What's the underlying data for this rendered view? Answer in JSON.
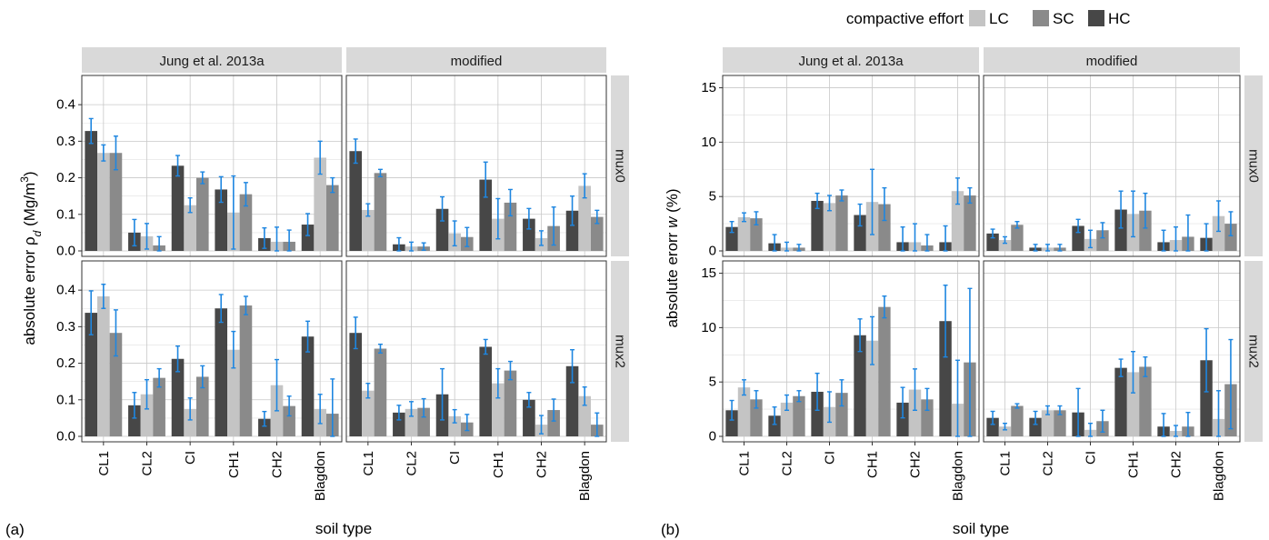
{
  "legend": {
    "title": "compactive effort",
    "items": [
      "LC",
      "SC",
      "HC"
    ]
  },
  "panel_labels": [
    "(a)",
    "(b)"
  ],
  "colors": {
    "LC": "#c4c4c4",
    "SC": "#8a8a8a",
    "HC": "#474747",
    "errorbar": "#1e86e0",
    "strip": "#d9d9d9",
    "grid": "#c8c8c8"
  },
  "chart_data": [
    {
      "type": "bar",
      "ylabel": "absolute error ρd (Mg/m3)",
      "xlabel": "soil type",
      "ylim": [
        0,
        0.47
      ],
      "yticks": [
        0.0,
        0.1,
        0.2,
        0.3,
        0.4
      ],
      "columns": [
        "Jung et al. 2013a",
        "modified"
      ],
      "rows": [
        "mux0",
        "mux2"
      ],
      "categories": [
        "CL1",
        "CL2",
        "CI",
        "CH1",
        "CH2",
        "Blagdon"
      ],
      "series_order": [
        "HC",
        "LC",
        "SC"
      ],
      "panels": [
        {
          "column": "Jung et al. 2013a",
          "row": "mux0",
          "HC": [
            0.328,
            0.05,
            0.233,
            0.168,
            0.035,
            0.072
          ],
          "LC": [
            0.268,
            0.04,
            0.125,
            0.105,
            0.025,
            0.255
          ],
          "SC": [
            0.268,
            0.015,
            0.2,
            0.155,
            0.025,
            0.18
          ],
          "err": {
            "HC": [
              0.034,
              0.036,
              0.028,
              0.035,
              0.028,
              0.03
            ],
            "LC": [
              0.022,
              0.035,
              0.02,
              0.1,
              0.04,
              0.045
            ],
            "SC": [
              0.046,
              0.024,
              0.016,
              0.032,
              0.032,
              0.02
            ]
          }
        },
        {
          "column": "modified",
          "row": "mux0",
          "HC": [
            0.273,
            0.018,
            0.115,
            0.195,
            0.088,
            0.11
          ],
          "LC": [
            0.112,
            0.012,
            0.048,
            0.088,
            0.035,
            0.178
          ],
          "SC": [
            0.213,
            0.012,
            0.038,
            0.132,
            0.068,
            0.093
          ],
          "err": {
            "HC": [
              0.033,
              0.018,
              0.033,
              0.048,
              0.028,
              0.04
            ],
            "LC": [
              0.017,
              0.012,
              0.034,
              0.055,
              0.02,
              0.033
            ],
            "SC": [
              0.01,
              0.01,
              0.026,
              0.036,
              0.052,
              0.018
            ]
          }
        },
        {
          "column": "Jung et al. 2013a",
          "row": "mux2",
          "HC": [
            0.338,
            0.085,
            0.212,
            0.35,
            0.048,
            0.273
          ],
          "LC": [
            0.383,
            0.115,
            0.075,
            0.237,
            0.14,
            0.075
          ],
          "SC": [
            0.283,
            0.16,
            0.163,
            0.358,
            0.083,
            0.062
          ],
          "err": {
            "HC": [
              0.06,
              0.035,
              0.035,
              0.038,
              0.02,
              0.042
            ],
            "LC": [
              0.033,
              0.04,
              0.03,
              0.05,
              0.07,
              0.04
            ],
            "SC": [
              0.063,
              0.025,
              0.03,
              0.025,
              0.027,
              0.095
            ]
          }
        },
        {
          "column": "modified",
          "row": "mux2",
          "HC": [
            0.283,
            0.065,
            0.115,
            0.245,
            0.1,
            0.192
          ],
          "LC": [
            0.125,
            0.075,
            0.055,
            0.145,
            0.032,
            0.11
          ],
          "SC": [
            0.24,
            0.078,
            0.038,
            0.18,
            0.072,
            0.032
          ],
          "err": {
            "HC": [
              0.043,
              0.02,
              0.07,
              0.02,
              0.02,
              0.045
            ],
            "LC": [
              0.02,
              0.02,
              0.018,
              0.04,
              0.025,
              0.025
            ],
            "SC": [
              0.012,
              0.025,
              0.022,
              0.025,
              0.03,
              0.032
            ]
          }
        }
      ]
    },
    {
      "type": "bar",
      "ylabel": "absolute erorr w (%)",
      "xlabel": "soil type",
      "ylim": [
        0,
        15.8
      ],
      "yticks": [
        0,
        5,
        10,
        15
      ],
      "columns": [
        "Jung et al. 2013a",
        "modified"
      ],
      "rows": [
        "mux0",
        "mux2"
      ],
      "categories": [
        "CL1",
        "CL2",
        "CI",
        "CH1",
        "CH2",
        "Blagdon"
      ],
      "series_order": [
        "HC",
        "LC",
        "SC"
      ],
      "panels": [
        {
          "column": "Jung et al. 2013a",
          "row": "mux0",
          "HC": [
            2.2,
            0.7,
            4.6,
            3.3,
            0.8,
            0.8
          ],
          "LC": [
            3.1,
            0.3,
            4.4,
            4.5,
            0.8,
            5.5
          ],
          "SC": [
            3.0,
            0.3,
            5.1,
            4.3,
            0.5,
            5.1
          ],
          "err": {
            "HC": [
              0.5,
              0.8,
              0.7,
              1.0,
              1.4,
              1.5
            ],
            "LC": [
              0.4,
              0.5,
              0.7,
              3.0,
              1.7,
              1.2
            ],
            "SC": [
              0.6,
              0.3,
              0.5,
              1.5,
              1.0,
              0.7
            ]
          }
        },
        {
          "column": "modified",
          "row": "mux0",
          "HC": [
            1.6,
            0.3,
            2.3,
            3.8,
            0.8,
            1.2
          ],
          "LC": [
            1.0,
            0.3,
            1.1,
            3.4,
            1.0,
            3.2
          ],
          "SC": [
            2.4,
            0.3,
            1.9,
            3.7,
            1.3,
            2.5
          ],
          "err": {
            "HC": [
              0.4,
              0.3,
              0.6,
              1.7,
              1.1,
              1.3
            ],
            "LC": [
              0.3,
              0.3,
              0.8,
              2.1,
              1.2,
              1.4
            ],
            "SC": [
              0.3,
              0.3,
              0.7,
              1.6,
              2.0,
              1.1
            ]
          }
        },
        {
          "column": "Jung et al. 2013a",
          "row": "mux2",
          "HC": [
            2.4,
            1.9,
            4.1,
            9.3,
            3.1,
            10.6
          ],
          "LC": [
            4.5,
            3.1,
            2.7,
            8.8,
            4.3,
            3.0
          ],
          "SC": [
            3.4,
            3.7,
            4.0,
            11.9,
            3.4,
            6.8
          ],
          "err": {
            "HC": [
              0.9,
              0.8,
              1.7,
              1.5,
              1.4,
              3.3
            ],
            "LC": [
              0.7,
              0.7,
              1.4,
              2.2,
              1.9,
              4.0
            ],
            "SC": [
              0.8,
              0.5,
              1.2,
              1.0,
              1.0,
              6.8
            ]
          }
        },
        {
          "column": "modified",
          "row": "mux2",
          "HC": [
            1.7,
            1.7,
            2.2,
            6.3,
            0.9,
            7.0
          ],
          "LC": [
            0.9,
            2.4,
            0.6,
            5.9,
            0.5,
            1.6
          ],
          "SC": [
            2.8,
            2.4,
            1.4,
            6.4,
            0.9,
            4.8
          ],
          "err": {
            "HC": [
              0.6,
              0.6,
              2.2,
              0.8,
              1.2,
              2.9
            ],
            "LC": [
              0.3,
              0.4,
              0.6,
              1.9,
              0.5,
              2.6
            ],
            "SC": [
              0.2,
              0.4,
              1.0,
              0.9,
              1.3,
              4.1
            ]
          }
        }
      ]
    }
  ]
}
